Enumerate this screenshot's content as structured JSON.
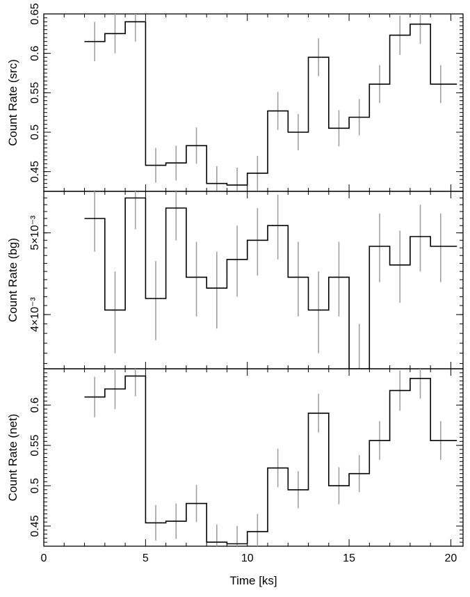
{
  "chart_data": {
    "type": "line",
    "style": "step-histogram with error bars",
    "x_axis": {
      "label": "Time [ks]",
      "lim": [
        0,
        20.6
      ],
      "ticks": [
        0,
        5,
        10,
        15,
        20
      ],
      "tick_labels": [
        "0",
        "5",
        "10",
        "15",
        "20"
      ]
    },
    "bin_edges": [
      2.0,
      3.0,
      4.0,
      5.0,
      6.0,
      7.0,
      8.0,
      9.0,
      10.0,
      11.0,
      12.0,
      13.0,
      14.0,
      15.0,
      16.0,
      17.0,
      18.0,
      19.0,
      20.3
    ],
    "bin_centers": [
      2.5,
      3.5,
      4.5,
      5.5,
      6.5,
      7.5,
      8.5,
      9.5,
      10.5,
      11.5,
      12.5,
      13.5,
      14.5,
      15.5,
      16.5,
      17.5,
      18.5,
      19.5
    ],
    "panels": [
      {
        "id": "src",
        "ylabel": "Count Rate (src)",
        "ylim": [
          0.425,
          0.65
        ],
        "ticks": [
          0.45,
          0.5,
          0.55,
          0.6,
          0.65
        ],
        "tick_labels": [
          "0.45",
          "0.5",
          "0.55",
          "0.6",
          "0.65"
        ],
        "values": [
          0.615,
          0.625,
          0.64,
          0.458,
          0.461,
          0.483,
          0.435,
          0.433,
          0.448,
          0.527,
          0.5,
          0.595,
          0.505,
          0.519,
          0.561,
          0.623,
          0.637,
          0.561
        ],
        "errors": [
          0.025,
          0.025,
          0.025,
          0.022,
          0.022,
          0.023,
          0.022,
          0.022,
          0.022,
          0.024,
          0.023,
          0.024,
          0.023,
          0.023,
          0.024,
          0.025,
          0.025,
          0.024
        ]
      },
      {
        "id": "bg",
        "ylabel": "Count Rate (bg)",
        "log_scale": true,
        "ylim": [
          0.00345,
          0.0056
        ],
        "ticks": [
          0.004,
          0.005
        ],
        "tick_labels": [
          "4×10⁻³",
          "5×10⁻³"
        ],
        "values": [
          0.0052,
          0.00405,
          0.0055,
          0.00418,
          0.00535,
          0.00443,
          0.0043,
          0.00465,
          0.0049,
          0.0051,
          0.00443,
          0.00405,
          0.00443,
          0.00345,
          0.00482,
          0.00458,
          0.00495,
          0.00482
        ],
        "errors": [
          0.00045,
          0.00045,
          0.00045,
          0.00045,
          0.00045,
          0.00045,
          0.00045,
          0.00045,
          0.00045,
          0.00045,
          0.00045,
          0.00045,
          0.00045,
          0.00045,
          0.00045,
          0.00045,
          0.00045,
          0.00045
        ]
      },
      {
        "id": "net",
        "ylabel": "Count Rate (net)",
        "ylim": [
          0.425,
          0.645
        ],
        "ticks": [
          0.45,
          0.5,
          0.55,
          0.6
        ],
        "tick_labels": [
          "0.45",
          "0.5",
          "0.55",
          "0.6"
        ],
        "values": [
          0.61,
          0.62,
          0.636,
          0.454,
          0.456,
          0.478,
          0.43,
          0.428,
          0.443,
          0.522,
          0.495,
          0.59,
          0.5,
          0.515,
          0.556,
          0.618,
          0.633,
          0.556
        ],
        "errors": [
          0.025,
          0.025,
          0.025,
          0.022,
          0.022,
          0.023,
          0.022,
          0.022,
          0.022,
          0.024,
          0.023,
          0.024,
          0.023,
          0.023,
          0.024,
          0.025,
          0.025,
          0.024
        ]
      }
    ]
  }
}
